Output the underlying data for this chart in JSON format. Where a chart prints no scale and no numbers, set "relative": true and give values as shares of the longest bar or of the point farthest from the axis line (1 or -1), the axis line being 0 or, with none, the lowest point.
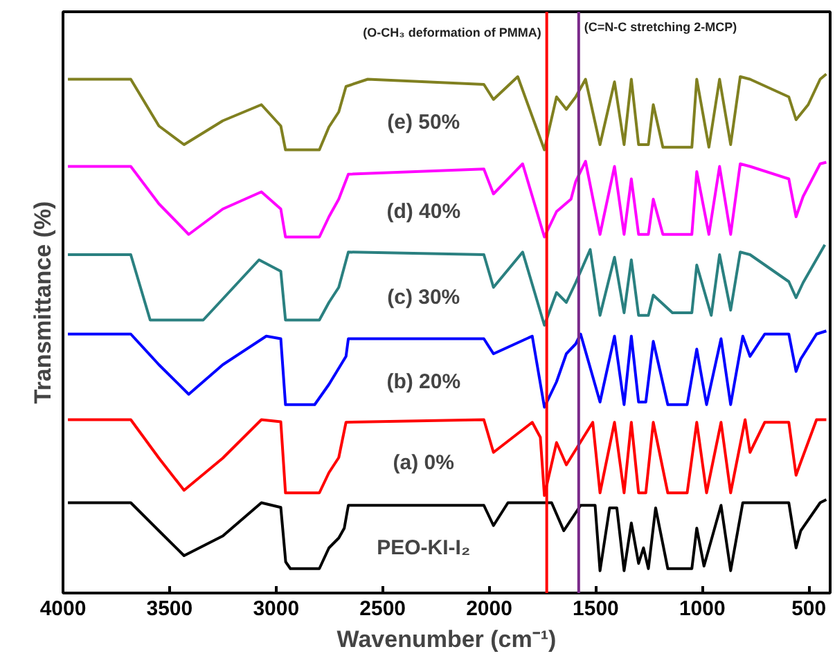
{
  "chart_data": {
    "type": "line",
    "relative": true,
    "xlabel": "Wavenumber (cm⁻¹)",
    "ylabel": "Transmittance (%)",
    "xlim": [
      4000,
      400
    ],
    "xticks": [
      4000,
      3500,
      3000,
      2500,
      2000,
      1500,
      1000,
      500
    ],
    "grid": false,
    "line_style": "solid",
    "marker": "none",
    "ref_lines": [
      {
        "axis": "x",
        "value": 1730,
        "label": "(O-CH₃ deformation of PMMA)",
        "color": "#ff0000"
      },
      {
        "axis": "x",
        "value": 1580,
        "label": "(C=N-C stretching 2-MCP)",
        "color": "#7b2a8a"
      }
    ],
    "series": [
      {
        "name": "PEO-KI-I₂",
        "color": "#000000",
        "x": [
          3977,
          3682,
          3550,
          3432,
          3250,
          3069,
          2978,
          2955,
          2933,
          2797,
          2752,
          2706,
          2680,
          2661,
          2025,
          1980,
          1912,
          1707,
          1650,
          1571,
          1503,
          1480,
          1435,
          1401,
          1367,
          1333,
          1299,
          1276,
          1253,
          1219,
          1162,
          1049,
          1026,
          992,
          912,
          867,
          810,
          594,
          560,
          538,
          447,
          418
        ],
        "values": [
          0.174,
          0.174,
          0.12,
          0.072,
          0.11,
          0.174,
          0.165,
          0.06,
          0.047,
          0.047,
          0.087,
          0.106,
          0.125,
          0.169,
          0.169,
          0.13,
          0.174,
          0.174,
          0.12,
          0.169,
          0.169,
          0.043,
          0.164,
          0.164,
          0.043,
          0.135,
          0.057,
          0.087,
          0.047,
          0.164,
          0.047,
          0.047,
          0.125,
          0.052,
          0.169,
          0.043,
          0.174,
          0.174,
          0.087,
          0.12,
          0.174,
          0.18
        ]
      },
      {
        "name": "(a) 0%",
        "color": "#ff0000",
        "x": [
          3977,
          3682,
          3550,
          3432,
          3250,
          3069,
          2978,
          2956,
          2797,
          2752,
          2706,
          2672,
          2025,
          1980,
          1798,
          1760,
          1741,
          1684,
          1638,
          1514,
          1480,
          1412,
          1367,
          1333,
          1299,
          1265,
          1230,
          1162,
          1071,
          1026,
          980,
          912,
          867,
          799,
          776,
          707,
          594,
          560,
          538,
          464,
          418
        ],
        "values": [
          0.334,
          0.334,
          0.26,
          0.198,
          0.26,
          0.334,
          0.33,
          0.193,
          0.193,
          0.232,
          0.261,
          0.329,
          0.334,
          0.271,
          0.329,
          0.3,
          0.188,
          0.29,
          0.247,
          0.329,
          0.193,
          0.329,
          0.193,
          0.329,
          0.193,
          0.193,
          0.329,
          0.193,
          0.193,
          0.329,
          0.193,
          0.329,
          0.193,
          0.334,
          0.271,
          0.329,
          0.329,
          0.227,
          0.252,
          0.334,
          0.334
        ]
      },
      {
        "name": "(b) 20%",
        "color": "#0000ff",
        "x": [
          3977,
          3682,
          3550,
          3410,
          3250,
          3046,
          2978,
          2956,
          2819,
          2752,
          2672,
          2661,
          2025,
          1980,
          1798,
          1741,
          1684,
          1638,
          1594,
          1571,
          1480,
          1412,
          1367,
          1333,
          1299,
          1265,
          1230,
          1162,
          1071,
          1026,
          980,
          912,
          867,
          810,
          776,
          707,
          594,
          560,
          538,
          464,
          418
        ],
        "values": [
          0.499,
          0.499,
          0.44,
          0.383,
          0.44,
          0.495,
          0.49,
          0.363,
          0.363,
          0.402,
          0.456,
          0.49,
          0.49,
          0.461,
          0.495,
          0.358,
          0.407,
          0.461,
          0.48,
          0.499,
          0.368,
          0.495,
          0.363,
          0.495,
          0.368,
          0.368,
          0.485,
          0.363,
          0.363,
          0.47,
          0.363,
          0.49,
          0.363,
          0.495,
          0.456,
          0.499,
          0.499,
          0.427,
          0.451,
          0.499,
          0.505
        ]
      },
      {
        "name": "(c) 30%",
        "color": "#2a8080",
        "x": [
          3977,
          3682,
          3591,
          3342,
          3080,
          2978,
          2956,
          2797,
          2752,
          2706,
          2661,
          2025,
          1980,
          1843,
          1741,
          1684,
          1638,
          1594,
          1526,
          1480,
          1412,
          1367,
          1333,
          1299,
          1253,
          1230,
          1140,
          1049,
          1026,
          958,
          919,
          867,
          822,
          776,
          594,
          560,
          527,
          425
        ],
        "values": [
          0.652,
          0.652,
          0.526,
          0.526,
          0.642,
          0.62,
          0.526,
          0.526,
          0.56,
          0.589,
          0.657,
          0.652,
          0.589,
          0.657,
          0.516,
          0.579,
          0.56,
          0.598,
          0.662,
          0.535,
          0.647,
          0.54,
          0.642,
          0.535,
          0.535,
          0.574,
          0.54,
          0.54,
          0.632,
          0.535,
          0.652,
          0.545,
          0.657,
          0.652,
          0.6,
          0.569,
          0.598,
          0.671
        ]
      },
      {
        "name": "(d) 40%",
        "color": "#ff00ff",
        "x": [
          3977,
          3682,
          3550,
          3410,
          3250,
          3069,
          2978,
          2956,
          2797,
          2752,
          2706,
          2661,
          2025,
          1980,
          1843,
          1741,
          1684,
          1616,
          1594,
          1548,
          1480,
          1412,
          1367,
          1333,
          1299,
          1253,
          1230,
          1185,
          1049,
          1026,
          969,
          919,
          867,
          822,
          776,
          594,
          560,
          527,
          447,
          418
        ],
        "values": [
          0.822,
          0.822,
          0.75,
          0.691,
          0.74,
          0.773,
          0.74,
          0.686,
          0.686,
          0.725,
          0.759,
          0.807,
          0.817,
          0.769,
          0.827,
          0.686,
          0.735,
          0.759,
          0.793,
          0.832,
          0.691,
          0.822,
          0.691,
          0.798,
          0.691,
          0.691,
          0.759,
          0.691,
          0.691,
          0.812,
          0.691,
          0.822,
          0.691,
          0.827,
          0.822,
          0.798,
          0.725,
          0.764,
          0.827,
          0.83
        ]
      },
      {
        "name": "(e) 50%",
        "color": "#808020",
        "x": [
          3977,
          3682,
          3550,
          3432,
          3250,
          3069,
          2978,
          2956,
          2797,
          2752,
          2706,
          2672,
          2570,
          2025,
          1980,
          1866,
          1741,
          1684,
          1638,
          1594,
          1548,
          1480,
          1412,
          1367,
          1333,
          1299,
          1253,
          1230,
          1185,
          1049,
          1026,
          969,
          919,
          867,
          822,
          776,
          594,
          560,
          503,
          447,
          418
        ],
        "values": [
          0.99,
          0.99,
          0.9,
          0.864,
          0.91,
          0.941,
          0.9,
          0.854,
          0.854,
          0.898,
          0.927,
          0.976,
          0.99,
          0.98,
          0.951,
          0.995,
          0.854,
          0.956,
          0.932,
          0.956,
          0.99,
          0.864,
          0.985,
          0.864,
          0.99,
          0.864,
          0.864,
          0.941,
          0.859,
          0.859,
          0.99,
          0.859,
          0.99,
          0.864,
          0.995,
          0.99,
          0.956,
          0.912,
          0.941,
          0.99,
          1.0
        ]
      }
    ]
  }
}
